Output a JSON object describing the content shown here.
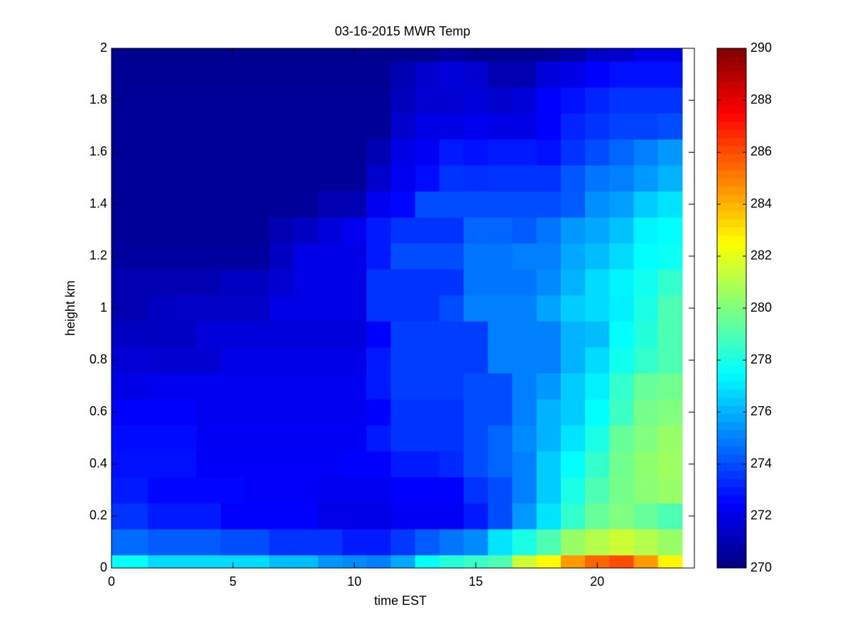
{
  "chart_data": {
    "type": "heatmap",
    "title": "03-16-2015 MWR Temp",
    "x_label": "time EST",
    "y_label": "height km",
    "colormap": "jet",
    "x": [
      0,
      1,
      2,
      3,
      4,
      5,
      6,
      7,
      8,
      9,
      10,
      11,
      12,
      13,
      14,
      15,
      16,
      17,
      18,
      19,
      20,
      21,
      22,
      23
    ],
    "y": [
      0,
      0.1,
      0.2,
      0.3,
      0.4,
      0.5,
      0.6,
      0.7,
      0.8,
      0.9,
      1,
      1.1,
      1.2,
      1.3,
      1.4,
      1.5,
      1.6,
      1.7,
      1.8,
      1.9,
      2
    ],
    "values": [
      [
        277.6,
        277.6,
        276.8,
        276.8,
        276.8,
        276.8,
        276.8,
        276.2,
        276.2,
        275.4,
        275.2,
        275,
        275.8,
        277.6,
        278.2,
        278.6,
        279,
        281.5,
        282.6,
        284.5,
        285.5,
        286,
        284.5,
        282.7
      ],
      [
        274.6,
        274.6,
        274.3,
        274.3,
        274.3,
        274,
        274,
        273.5,
        273.5,
        273.5,
        273,
        273,
        273.6,
        274.3,
        274.8,
        275.2,
        277,
        278,
        279,
        280.5,
        281,
        281.5,
        281,
        280.5
      ],
      [
        273.5,
        273.5,
        273,
        273,
        273,
        272.5,
        272.5,
        272.5,
        272.5,
        272,
        272,
        272,
        272.3,
        272.3,
        272.3,
        273,
        274,
        275.5,
        277,
        278.5,
        279.5,
        280,
        279.5,
        279
      ],
      [
        273,
        273,
        272.6,
        272.6,
        272.6,
        272.6,
        272.4,
        272.4,
        272.4,
        272.2,
        272.2,
        272.2,
        272.5,
        272.5,
        272.5,
        273.5,
        274,
        275,
        276.5,
        278,
        279,
        279.8,
        280.2,
        280.5
      ],
      [
        272.8,
        272.8,
        272.8,
        272.8,
        272.4,
        272.4,
        272.4,
        272.4,
        272.4,
        272.4,
        272.5,
        272.5,
        273,
        273,
        273.3,
        274,
        274.5,
        275,
        276.5,
        277.5,
        278.5,
        279.7,
        280.3,
        280.6
      ],
      [
        272.7,
        272.7,
        272.7,
        272.7,
        272.3,
        272.3,
        272.3,
        272.3,
        272.3,
        272.3,
        272.3,
        273,
        273.5,
        273.5,
        273.5,
        274,
        274.5,
        275.2,
        276,
        277,
        278,
        279.5,
        280,
        280.5
      ],
      [
        272.5,
        272.5,
        272.5,
        272.5,
        272.2,
        272.2,
        272.2,
        272.2,
        272.2,
        272.2,
        272.2,
        272.5,
        273.5,
        273.5,
        273.5,
        274,
        274,
        275,
        276,
        276.5,
        277.5,
        278.7,
        279.8,
        280
      ],
      [
        272,
        272,
        272.2,
        272.2,
        272.2,
        272.2,
        272.2,
        272.2,
        272.2,
        272.2,
        272.2,
        273,
        273.7,
        273.7,
        273.7,
        274,
        274,
        275,
        275.5,
        276.5,
        277.2,
        278.5,
        279.5,
        279.7
      ],
      [
        271.7,
        271.7,
        271.6,
        271.6,
        271.6,
        272,
        272,
        272,
        272,
        272,
        272,
        273,
        273.7,
        273.7,
        273.7,
        273.7,
        275,
        275,
        275,
        276,
        276.8,
        277.8,
        278.5,
        279
      ],
      [
        271.3,
        271.3,
        271.3,
        271.3,
        271.8,
        271.8,
        271.8,
        271.8,
        271.8,
        271.8,
        271.8,
        272.5,
        273.7,
        273.7,
        273.7,
        273.7,
        275,
        275,
        275,
        276,
        276.2,
        277.5,
        278.2,
        279
      ],
      [
        271,
        271,
        271.3,
        271.4,
        271.4,
        271.4,
        271.4,
        272,
        272,
        272,
        272,
        273.5,
        273.5,
        273.5,
        274,
        275,
        275,
        275,
        275.7,
        276.5,
        276.8,
        277.2,
        278,
        279
      ],
      [
        271,
        271,
        271,
        271,
        271,
        271.3,
        271.3,
        271.6,
        272,
        272,
        272,
        273.5,
        273.5,
        273.5,
        273.5,
        274.8,
        274.8,
        274.8,
        275.2,
        276,
        276.8,
        277.3,
        277.8,
        278.5
      ],
      [
        270.6,
        270.6,
        270.6,
        270.6,
        270.6,
        270.6,
        270.6,
        271.3,
        272,
        272,
        272,
        273,
        274,
        274,
        274,
        274.8,
        274.8,
        275,
        275,
        275.8,
        276.2,
        276.8,
        277.5,
        277.7
      ],
      [
        270.5,
        270.5,
        270.5,
        270.5,
        270.5,
        270.5,
        270.5,
        271,
        271.3,
        271.8,
        272.2,
        273,
        273.5,
        273.5,
        273.5,
        274.5,
        274.5,
        274.3,
        274.8,
        275.5,
        275.8,
        276.3,
        277.3,
        277.5
      ],
      [
        270.5,
        270.5,
        270.5,
        270.5,
        270.5,
        270.5,
        270.5,
        270.5,
        270.5,
        271,
        271,
        272.2,
        272.6,
        274,
        274,
        274,
        274,
        274,
        274,
        274.3,
        275.3,
        275.6,
        276.5,
        277
      ],
      [
        270.5,
        270.5,
        270.5,
        270.5,
        270.5,
        270.5,
        270.5,
        270.5,
        270.5,
        270.5,
        270.5,
        271.5,
        272.2,
        272.7,
        273.5,
        273.4,
        273.5,
        273.5,
        273.5,
        274.2,
        274.8,
        275,
        275.5,
        276
      ],
      [
        270.5,
        270.5,
        270.5,
        270.5,
        270.5,
        270.5,
        270.5,
        270.5,
        270.5,
        270.5,
        270.5,
        271,
        272,
        272.3,
        273,
        272.8,
        273,
        273,
        272.8,
        273.5,
        274,
        274.5,
        275,
        275.5
      ],
      [
        270.5,
        270.5,
        270.5,
        270.5,
        270.5,
        270.5,
        270.5,
        270.5,
        270.5,
        270.5,
        270.5,
        270.5,
        271.5,
        272,
        272,
        272.2,
        272,
        272,
        272.5,
        273.2,
        273.5,
        273.8,
        273.8,
        274
      ],
      [
        270.5,
        270.5,
        270.5,
        270.5,
        270.5,
        270.5,
        270.5,
        270.5,
        270.5,
        270.5,
        270.5,
        270.5,
        271.2,
        271.6,
        271.6,
        271.8,
        271.5,
        271.8,
        272.5,
        272.8,
        273.2,
        273.5,
        273.5,
        273.5
      ],
      [
        270.4,
        270.4,
        270.4,
        270.4,
        270.4,
        270.4,
        270.4,
        270.4,
        270.4,
        270.4,
        270.4,
        270.4,
        271,
        271.5,
        271.8,
        271.6,
        271,
        271,
        271.8,
        272,
        272.5,
        272.8,
        272.8,
        272.8
      ],
      [
        270.3,
        270.3,
        270.3,
        270.3,
        270.3,
        270.3,
        270.3,
        270.3,
        270.3,
        270.3,
        270.3,
        270.3,
        270.3,
        270.3,
        270.6,
        270.4,
        270.4,
        270.4,
        270.5,
        270.8,
        271.5,
        271.5,
        272,
        272
      ]
    ],
    "xlim": [
      0,
      24
    ],
    "xticks": [
      0,
      5,
      10,
      15,
      20
    ],
    "ylim": [
      0,
      2
    ],
    "yticks": [
      0,
      0.2,
      0.4,
      0.6,
      0.8,
      1,
      1.2,
      1.4,
      1.6,
      1.8,
      2
    ],
    "clim": [
      270,
      290
    ],
    "cticks": [
      270,
      272,
      274,
      276,
      278,
      280,
      282,
      284,
      286,
      288,
      290
    ]
  }
}
